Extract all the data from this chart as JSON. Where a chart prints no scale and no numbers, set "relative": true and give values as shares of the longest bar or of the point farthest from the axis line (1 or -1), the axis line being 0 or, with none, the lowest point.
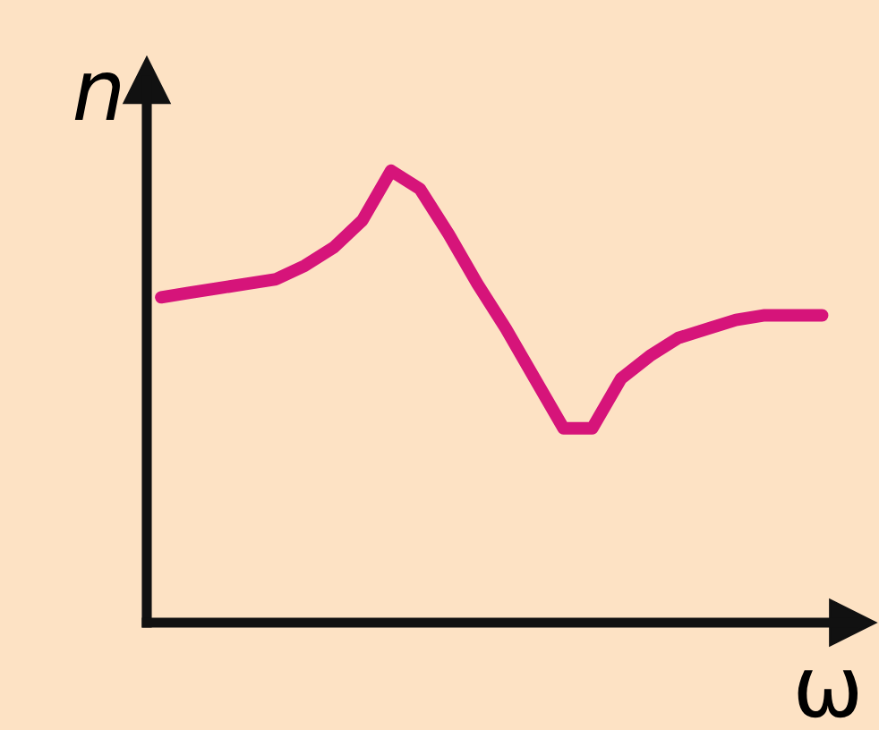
{
  "chart_data": {
    "type": "line",
    "xlabel": "ω",
    "ylabel": "n",
    "relative": true,
    "grid": false,
    "legend": false,
    "marker": "none",
    "line_style": "solid",
    "categories": [
      null,
      null,
      null,
      null,
      null,
      null,
      null,
      null,
      null,
      null,
      null,
      null,
      null,
      null,
      null,
      null,
      null,
      null,
      null,
      null,
      null,
      null,
      null,
      null
    ],
    "series": [
      {
        "color": "#d6147a",
        "values": [
          0.72,
          0.73,
          0.74,
          0.75,
          0.76,
          0.79,
          0.83,
          0.89,
          1,
          0.96,
          0.86,
          0.75,
          0.65,
          0.54,
          0.43,
          0.43,
          0.54,
          0.59,
          0.63,
          0.65,
          0.67,
          0.68,
          0.68,
          0.68
        ]
      }
    ]
  }
}
